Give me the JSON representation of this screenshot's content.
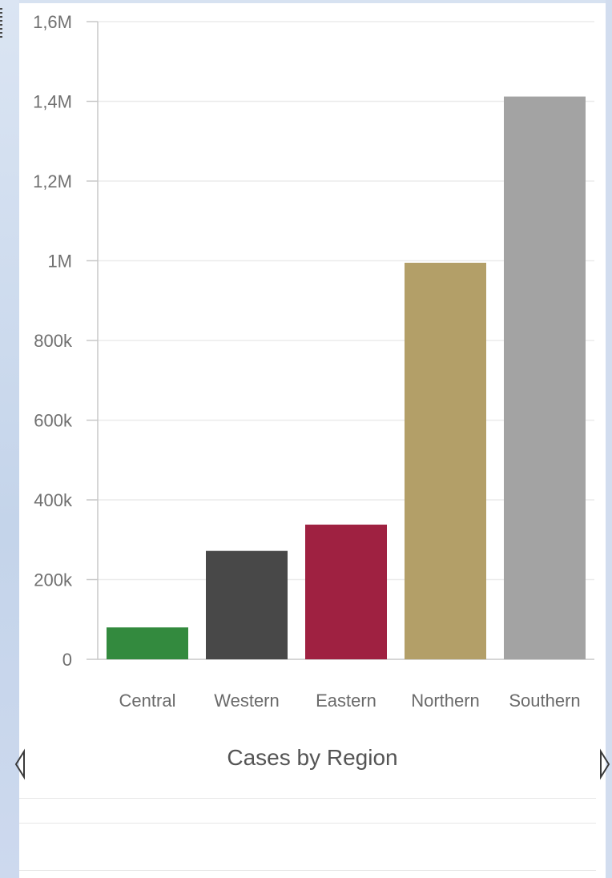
{
  "chart_data": {
    "type": "bar",
    "title": "Cases by Region",
    "categories": [
      "Central",
      "Western",
      "Eastern",
      "Northern",
      "Southern"
    ],
    "values": [
      80000,
      272000,
      338000,
      995000,
      1412000
    ],
    "colors": [
      "#338a3e",
      "#484848",
      "#9f2141",
      "#b39f68",
      "#a3a3a3"
    ],
    "ylim": [
      0,
      1600000
    ],
    "y_ticks": [
      0,
      200000,
      400000,
      600000,
      800000,
      1000000,
      1200000,
      1400000,
      1600000
    ],
    "y_tick_labels": [
      "0",
      "200k",
      "400k",
      "600k",
      "800k",
      "1M",
      "1,2M",
      "1,4M",
      "1,6M"
    ],
    "grid": true,
    "xlabel": "",
    "ylabel": ""
  },
  "colors": {
    "grid": "#ebebeb",
    "axis": "#c8c8c8"
  }
}
